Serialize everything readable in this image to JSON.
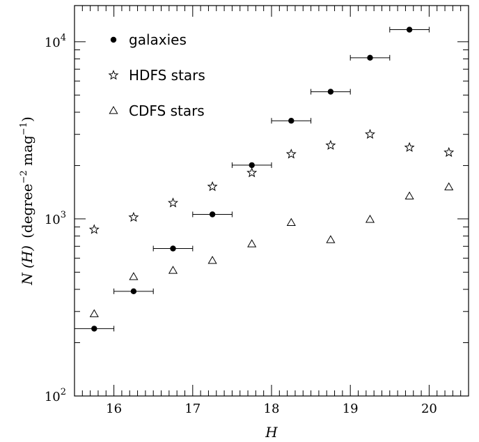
{
  "chart_data": {
    "type": "scatter",
    "title": "",
    "xlabel": "H",
    "ylabel_main": "N (H)",
    "ylabel_units": "(degree",
    "ylabel_exp1": "−2",
    "ylabel_mid": " mag",
    "ylabel_exp2": "−1",
    "ylabel_end": ")",
    "xlim": [
      15.5,
      20.5
    ],
    "ylim": [
      100,
      16000
    ],
    "yscale": "log",
    "x_ticks": [
      "16",
      "17",
      "18",
      "19",
      "20"
    ],
    "x_tick_values": [
      16,
      17,
      18,
      19,
      20
    ],
    "y_ticks": [
      {
        "value": 100,
        "base": "10",
        "exp": "2"
      },
      {
        "value": 1000,
        "base": "10",
        "exp": "3"
      },
      {
        "value": 10000,
        "base": "10",
        "exp": "4"
      }
    ],
    "legend_position": "top-left",
    "series": [
      {
        "name": "galaxies",
        "marker": "filled-circle",
        "x": [
          15.75,
          16.25,
          16.75,
          17.25,
          17.75,
          18.25,
          18.75,
          19.25,
          19.75
        ],
        "y": [
          240,
          390,
          680,
          1060,
          2010,
          3580,
          5220,
          8120,
          11700
        ],
        "xerr": 0.25
      },
      {
        "name": "HDFS stars",
        "marker": "open-star",
        "x": [
          15.75,
          16.25,
          16.75,
          17.25,
          17.75,
          18.25,
          18.75,
          19.25,
          19.75,
          20.25
        ],
        "y": [
          870,
          1020,
          1230,
          1520,
          1820,
          2320,
          2600,
          3000,
          2530,
          2370
        ]
      },
      {
        "name": "CDFS stars",
        "marker": "open-triangle",
        "x": [
          15.75,
          16.25,
          16.75,
          17.25,
          17.75,
          18.25,
          18.75,
          19.25,
          19.75,
          20.25
        ],
        "y": [
          290,
          470,
          510,
          580,
          720,
          950,
          760,
          990,
          1340,
          1510
        ]
      }
    ]
  }
}
